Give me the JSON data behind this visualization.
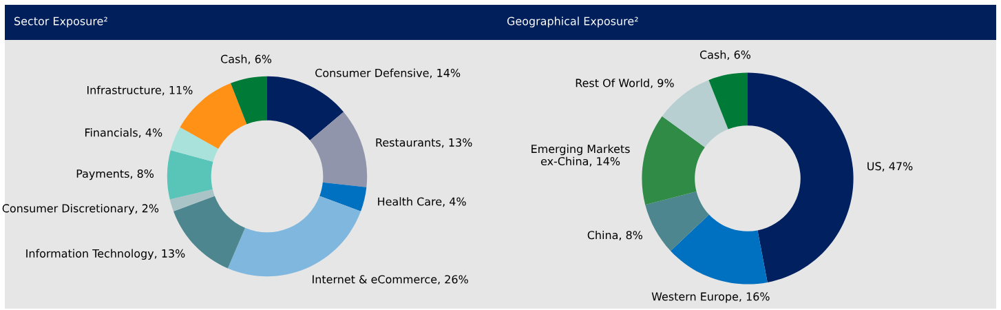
{
  "chart_data": [
    {
      "type": "donut",
      "title": "Sector Exposure²",
      "categories": [
        "Consumer Defensive",
        "Restaurants",
        "Health Care",
        "Internet & eCommerce",
        "Information Technology",
        "Consumer Discretionary",
        "Payments",
        "Financials",
        "Infrastructure",
        "Cash"
      ],
      "values": [
        14,
        13,
        4,
        26,
        13,
        2,
        8,
        4,
        11,
        6
      ],
      "value_labels": [
        "14%",
        "13%",
        "4%",
        "26%",
        "13%",
        "2%",
        "8%",
        "4%",
        "11%",
        "6%"
      ],
      "colors": [
        "#002060",
        "#9095ab",
        "#0070c0",
        "#7fb7de",
        "#4d868e",
        "#a9c3c6",
        "#58c5b8",
        "#a9e2da",
        "#ff9216",
        "#007a37"
      ]
    },
    {
      "type": "donut",
      "title": "Geographical Exposure²",
      "categories": [
        "US",
        "Western Europe",
        "China",
        "Emerging Markets\nex-China",
        "Rest Of World",
        "Cash"
      ],
      "values": [
        47,
        16,
        8,
        14,
        9,
        6
      ],
      "value_labels": [
        "47%",
        "16%",
        "8%",
        "14%",
        "9%",
        "6%"
      ],
      "colors": [
        "#002060",
        "#0070c0",
        "#4d868e",
        "#2f8b45",
        "#b8cfd2",
        "#007a37"
      ]
    }
  ]
}
